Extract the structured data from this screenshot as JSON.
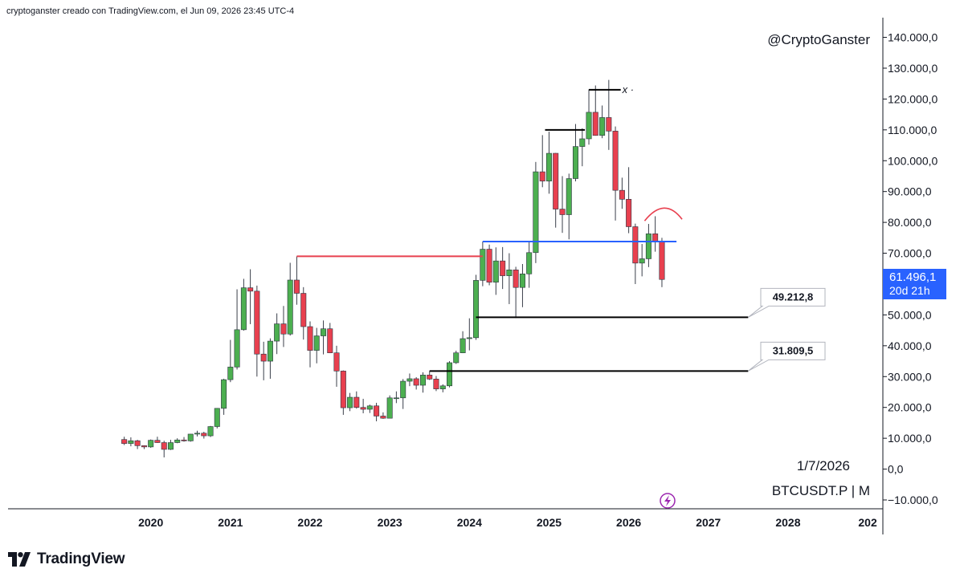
{
  "header": {
    "note": "cryptoganster creado con TradingView.com, el Jun 09, 2026 23:45 UTC-4"
  },
  "watermark": {
    "handle": "@CryptoGanster",
    "date": "1/7/2026",
    "symbol": "BTCUSDT.P | M"
  },
  "footer": {
    "brand": "TradingView"
  },
  "price_badge": {
    "price": "61.496,1",
    "countdown": "20d 21h",
    "color": "#2962ff"
  },
  "colors": {
    "up": "#4caf50",
    "down": "#e8404f",
    "resistance_red": "#e8404f",
    "blue_level": "#2962ff"
  },
  "chart_data": {
    "type": "candlestick",
    "x_labels": [
      "2020",
      "2021",
      "2022",
      "2023",
      "2024",
      "2025",
      "2026",
      "2027",
      "2028",
      "202"
    ],
    "y_ticks": [
      "140.000,0",
      "130.000,0",
      "120.000,0",
      "110.000,0",
      "100.000,0",
      "90.000,0",
      "80.000,0",
      "70.000,0",
      "60.000,0",
      "50.000,0",
      "40.000,0",
      "30.000,0",
      "20.000,0",
      "10.000,0",
      "0,0",
      "−10.000,0"
    ],
    "y_tick_values": [
      140000,
      130000,
      120000,
      110000,
      100000,
      90000,
      80000,
      70000,
      60000,
      50000,
      40000,
      30000,
      20000,
      10000,
      0,
      -10000
    ],
    "ylim": [
      -10000,
      143000
    ],
    "xlim": [
      2019.62,
      2029.1
    ],
    "grid": false,
    "candles": [
      {
        "t": 2019.667,
        "o": 9600,
        "h": 10500,
        "l": 7800,
        "c": 8300
      },
      {
        "t": 2019.75,
        "o": 8300,
        "h": 10300,
        "l": 7400,
        "c": 9200
      },
      {
        "t": 2019.833,
        "o": 9200,
        "h": 9500,
        "l": 6500,
        "c": 7600
      },
      {
        "t": 2019.917,
        "o": 7600,
        "h": 7700,
        "l": 6500,
        "c": 7200
      },
      {
        "t": 2020.0,
        "o": 7200,
        "h": 9600,
        "l": 6900,
        "c": 9350
      },
      {
        "t": 2020.083,
        "o": 9350,
        "h": 10500,
        "l": 8500,
        "c": 8600
      },
      {
        "t": 2020.167,
        "o": 8600,
        "h": 9200,
        "l": 3800,
        "c": 6400
      },
      {
        "t": 2020.25,
        "o": 6400,
        "h": 9500,
        "l": 6200,
        "c": 8600
      },
      {
        "t": 2020.333,
        "o": 8600,
        "h": 10000,
        "l": 8400,
        "c": 9450
      },
      {
        "t": 2020.417,
        "o": 9450,
        "h": 10400,
        "l": 8900,
        "c": 9150
      },
      {
        "t": 2020.5,
        "o": 9150,
        "h": 11400,
        "l": 8900,
        "c": 11350
      },
      {
        "t": 2020.583,
        "o": 11350,
        "h": 12450,
        "l": 10600,
        "c": 11650
      },
      {
        "t": 2020.667,
        "o": 11650,
        "h": 12100,
        "l": 9900,
        "c": 10800
      },
      {
        "t": 2020.75,
        "o": 10800,
        "h": 14000,
        "l": 10400,
        "c": 13800
      },
      {
        "t": 2020.833,
        "o": 13800,
        "h": 19800,
        "l": 13200,
        "c": 19700
      },
      {
        "t": 2020.917,
        "o": 19700,
        "h": 29300,
        "l": 17600,
        "c": 29000
      },
      {
        "t": 2021.0,
        "o": 29000,
        "h": 41900,
        "l": 28200,
        "c": 33100
      },
      {
        "t": 2021.083,
        "o": 33100,
        "h": 58300,
        "l": 32300,
        "c": 45200
      },
      {
        "t": 2021.167,
        "o": 45200,
        "h": 61700,
        "l": 44900,
        "c": 58800
      },
      {
        "t": 2021.25,
        "o": 58800,
        "h": 64800,
        "l": 47000,
        "c": 57700
      },
      {
        "t": 2021.333,
        "o": 57700,
        "h": 59500,
        "l": 30000,
        "c": 37300
      },
      {
        "t": 2021.417,
        "o": 37300,
        "h": 41300,
        "l": 28800,
        "c": 35000
      },
      {
        "t": 2021.5,
        "o": 35000,
        "h": 42400,
        "l": 29300,
        "c": 41500
      },
      {
        "t": 2021.583,
        "o": 41500,
        "h": 50500,
        "l": 37300,
        "c": 47100
      },
      {
        "t": 2021.667,
        "o": 47100,
        "h": 52900,
        "l": 39600,
        "c": 43800
      },
      {
        "t": 2021.75,
        "o": 43800,
        "h": 66900,
        "l": 43300,
        "c": 61300
      },
      {
        "t": 2021.833,
        "o": 61300,
        "h": 69000,
        "l": 53300,
        "c": 57000
      },
      {
        "t": 2021.917,
        "o": 57000,
        "h": 59000,
        "l": 42000,
        "c": 46200
      },
      {
        "t": 2022.0,
        "o": 46200,
        "h": 47900,
        "l": 33000,
        "c": 38500
      },
      {
        "t": 2022.083,
        "o": 38500,
        "h": 45800,
        "l": 34300,
        "c": 43200
      },
      {
        "t": 2022.167,
        "o": 43200,
        "h": 48200,
        "l": 37200,
        "c": 45500
      },
      {
        "t": 2022.25,
        "o": 45500,
        "h": 47400,
        "l": 37600,
        "c": 37700
      },
      {
        "t": 2022.333,
        "o": 37700,
        "h": 40000,
        "l": 26700,
        "c": 31800
      },
      {
        "t": 2022.417,
        "o": 31800,
        "h": 32000,
        "l": 17600,
        "c": 19900
      },
      {
        "t": 2022.5,
        "o": 19900,
        "h": 24700,
        "l": 18800,
        "c": 23300
      },
      {
        "t": 2022.583,
        "o": 23300,
        "h": 25200,
        "l": 19600,
        "c": 20000
      },
      {
        "t": 2022.667,
        "o": 20000,
        "h": 22800,
        "l": 18100,
        "c": 19400
      },
      {
        "t": 2022.75,
        "o": 19400,
        "h": 20900,
        "l": 18200,
        "c": 20500
      },
      {
        "t": 2022.833,
        "o": 20500,
        "h": 21500,
        "l": 15500,
        "c": 17200
      },
      {
        "t": 2022.917,
        "o": 17200,
        "h": 18400,
        "l": 16300,
        "c": 16500
      },
      {
        "t": 2023.0,
        "o": 16500,
        "h": 23900,
        "l": 16500,
        "c": 23100
      },
      {
        "t": 2023.083,
        "o": 23100,
        "h": 25200,
        "l": 21400,
        "c": 23100
      },
      {
        "t": 2023.167,
        "o": 23100,
        "h": 29200,
        "l": 19500,
        "c": 28500
      },
      {
        "t": 2023.25,
        "o": 28500,
        "h": 31000,
        "l": 26900,
        "c": 29300
      },
      {
        "t": 2023.333,
        "o": 29300,
        "h": 29800,
        "l": 25800,
        "c": 27200
      },
      {
        "t": 2023.417,
        "o": 27200,
        "h": 31400,
        "l": 24800,
        "c": 30500
      },
      {
        "t": 2023.5,
        "o": 30500,
        "h": 31800,
        "l": 28900,
        "c": 29200
      },
      {
        "t": 2023.583,
        "o": 29200,
        "h": 30200,
        "l": 25300,
        "c": 26000
      },
      {
        "t": 2023.667,
        "o": 26000,
        "h": 27500,
        "l": 24900,
        "c": 27000
      },
      {
        "t": 2023.75,
        "o": 27000,
        "h": 35000,
        "l": 26500,
        "c": 34500
      },
      {
        "t": 2023.833,
        "o": 34500,
        "h": 38400,
        "l": 34100,
        "c": 37700
      },
      {
        "t": 2023.917,
        "o": 37700,
        "h": 44700,
        "l": 37600,
        "c": 42300
      },
      {
        "t": 2024.0,
        "o": 42300,
        "h": 48900,
        "l": 38500,
        "c": 42600
      },
      {
        "t": 2024.083,
        "o": 42600,
        "h": 63000,
        "l": 41900,
        "c": 61200
      },
      {
        "t": 2024.167,
        "o": 61200,
        "h": 73800,
        "l": 59300,
        "c": 71300
      },
      {
        "t": 2024.25,
        "o": 71300,
        "h": 72800,
        "l": 59600,
        "c": 60600
      },
      {
        "t": 2024.333,
        "o": 60600,
        "h": 71900,
        "l": 56500,
        "c": 67500
      },
      {
        "t": 2024.417,
        "o": 67500,
        "h": 72000,
        "l": 58400,
        "c": 62700
      },
      {
        "t": 2024.5,
        "o": 62700,
        "h": 70000,
        "l": 53500,
        "c": 64600
      },
      {
        "t": 2024.583,
        "o": 64600,
        "h": 65600,
        "l": 49000,
        "c": 58900
      },
      {
        "t": 2024.667,
        "o": 58900,
        "h": 66500,
        "l": 52500,
        "c": 63300
      },
      {
        "t": 2024.75,
        "o": 63300,
        "h": 73600,
        "l": 58800,
        "c": 70200
      },
      {
        "t": 2024.833,
        "o": 70200,
        "h": 99600,
        "l": 66800,
        "c": 96400
      },
      {
        "t": 2024.917,
        "o": 96400,
        "h": 108300,
        "l": 91400,
        "c": 93400
      },
      {
        "t": 2025.0,
        "o": 93400,
        "h": 109400,
        "l": 89300,
        "c": 102400
      },
      {
        "t": 2025.083,
        "o": 102400,
        "h": 102500,
        "l": 78300,
        "c": 84300
      },
      {
        "t": 2025.167,
        "o": 84300,
        "h": 95000,
        "l": 76600,
        "c": 82500
      },
      {
        "t": 2025.25,
        "o": 82500,
        "h": 95800,
        "l": 74500,
        "c": 94200
      },
      {
        "t": 2025.333,
        "o": 94200,
        "h": 111900,
        "l": 93300,
        "c": 104600
      },
      {
        "t": 2025.417,
        "o": 104600,
        "h": 110500,
        "l": 98200,
        "c": 107100
      },
      {
        "t": 2025.5,
        "o": 107100,
        "h": 123100,
        "l": 105200,
        "c": 115700
      },
      {
        "t": 2025.583,
        "o": 115700,
        "h": 124400,
        "l": 108100,
        "c": 108200
      },
      {
        "t": 2025.667,
        "o": 108200,
        "h": 117900,
        "l": 107300,
        "c": 114000
      },
      {
        "t": 2025.75,
        "o": 114000,
        "h": 126200,
        "l": 103500,
        "c": 109600
      },
      {
        "t": 2025.833,
        "o": 109600,
        "h": 111100,
        "l": 80600,
        "c": 90400
      },
      {
        "t": 2025.917,
        "o": 90400,
        "h": 94500,
        "l": 84400,
        "c": 87500
      },
      {
        "t": 2026.0,
        "o": 87500,
        "h": 97900,
        "l": 76500,
        "c": 78600
      },
      {
        "t": 2026.083,
        "o": 78600,
        "h": 79600,
        "l": 60000,
        "c": 66800
      },
      {
        "t": 2026.167,
        "o": 66800,
        "h": 73000,
        "l": 62500,
        "c": 68200
      },
      {
        "t": 2026.25,
        "o": 68200,
        "h": 79500,
        "l": 65500,
        "c": 76300
      },
      {
        "t": 2026.333,
        "o": 76300,
        "h": 82000,
        "l": 70500,
        "c": 73800
      },
      {
        "t": 2026.417,
        "o": 73800,
        "h": 75000,
        "l": 59000,
        "c": 61496.1
      }
    ],
    "levels": [
      {
        "name": "red-resistance",
        "y": 69000,
        "x1": 2021.833,
        "x2": 2024.167,
        "color": "#e8404f"
      },
      {
        "name": "blue-level",
        "y": 73800,
        "x1": 2024.167,
        "x2": 2026.6,
        "color": "#2962ff"
      },
      {
        "name": "black-high-1",
        "y": 110000,
        "x1": 2024.95,
        "x2": 2025.45,
        "color": "#000000"
      },
      {
        "name": "black-ath",
        "y": 123000,
        "x1": 2025.5,
        "x2": 2025.9,
        "color": "#000000"
      },
      {
        "name": "support-49k",
        "y": 49212.8,
        "x1": 2024.083,
        "x2": 2027.5,
        "color": "#000000"
      },
      {
        "name": "support-31k",
        "y": 31809.5,
        "x1": 2023.5,
        "x2": 2027.5,
        "color": "#000000"
      }
    ],
    "annotations": [
      {
        "name": "label-49k",
        "text": "49.212,8",
        "y": 49212.8
      },
      {
        "name": "label-31k",
        "text": "31.809,5",
        "y": 31809.5
      },
      {
        "name": "x-mark",
        "text": "x"
      }
    ]
  }
}
